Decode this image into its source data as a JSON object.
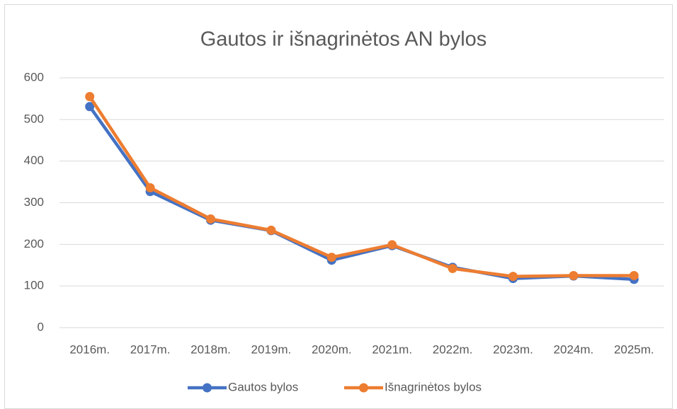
{
  "chart_data": {
    "type": "line",
    "title": "Gautos ir išnagrinėtos AN bylos",
    "categories": [
      "2016m.",
      "2017m.",
      "2018m.",
      "2019m.",
      "2020m.",
      "2021m.",
      "2022m.",
      "2023m.",
      "2024m.",
      "2025m."
    ],
    "series": [
      {
        "name": "Gautos bylos",
        "color": "#4472c4",
        "values": [
          531,
          327,
          258,
          233,
          162,
          197,
          145,
          118,
          124,
          116
        ]
      },
      {
        "name": "Išnagrinėtos bylos",
        "color": "#ed7d31",
        "values": [
          555,
          336,
          261,
          234,
          169,
          199,
          142,
          123,
          125,
          125
        ]
      }
    ],
    "ylim": [
      0,
      600
    ],
    "yticks": [
      0,
      100,
      200,
      300,
      400,
      500,
      600
    ],
    "grid": true,
    "legend": "bottom"
  }
}
